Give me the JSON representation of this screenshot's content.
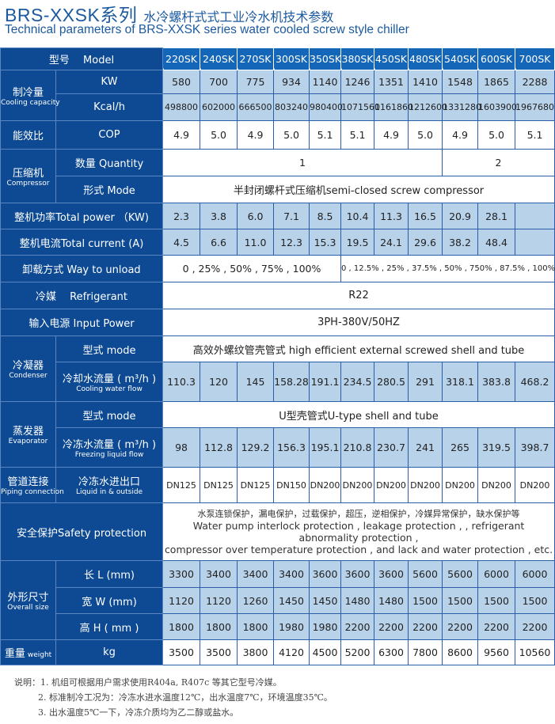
{
  "title": {
    "main": "BRS-XXSK系列",
    "cn": "水冷螺杆式式工业冷水机技术参数",
    "en": "Technical parameters of BRS-XXSK series water cooled screw style chiller"
  },
  "header": {
    "label": "型号　 Model",
    "models": [
      "220SK",
      "240SK",
      "270SK",
      "300SK",
      "350SK",
      "380SK",
      "450SK",
      "480SK",
      "540SK",
      "600SK",
      "700SK"
    ]
  },
  "cooling": {
    "label": "制冷量",
    "sub": "Cooling capacity",
    "kw_label": "KW",
    "kw": [
      "580",
      "700",
      "775",
      "934",
      "1140",
      "1246",
      "1351",
      "1410",
      "1548",
      "1865",
      "2288"
    ],
    "kcal_label": "Kcal/h",
    "kcal": [
      "498800",
      "602000",
      "666500",
      "803240",
      "980400",
      "1071560",
      "1161860",
      "1212600",
      "1331280",
      "1603900",
      "1967680"
    ]
  },
  "cop": {
    "label": "能效比",
    "unit": "COP",
    "values": [
      "4.9",
      "5.0",
      "4.9",
      "5.0",
      "5.1",
      "5.1",
      "4.9",
      "5.0",
      "4.9",
      "5.0",
      "5.1"
    ]
  },
  "compressor": {
    "label": "压缩机",
    "sub": "Compressor",
    "qty_label": "数量 Quantity",
    "qty": [
      "1",
      "2"
    ],
    "mode_label": "形式 Mode",
    "mode": "半封闭螺杆式压缩机semi-closed screw compressor"
  },
  "power": {
    "label": "整机功率Total power （KW)",
    "values": [
      "2.3",
      "3.8",
      "6.0",
      "7.1",
      "8.5",
      "10.4",
      "11.3",
      "16.5",
      "20.9",
      "28.1",
      ""
    ]
  },
  "current": {
    "label": "整机电流Total current (A)",
    "values": [
      "4.5",
      "6.6",
      "11.0",
      "12.3",
      "15.3",
      "19.5",
      "24.1",
      "29.6",
      "38.2",
      "48.4",
      ""
    ]
  },
  "unload": {
    "label": "卸载方式 Way to unload",
    "a": "0 , 25% , 50% , 75% , 100%",
    "b": "0 , 12.5% , 25% , 37.5% , 50% , 750% , 87.5% , 100%"
  },
  "refrigerant": {
    "label": "冷媒　 Refrigerant",
    "value": "R22"
  },
  "input_power": {
    "label": "输入电源 Input Power",
    "value": "3PH-380V/50HZ"
  },
  "condenser": {
    "label": "冷凝器",
    "sub": "Condenser",
    "mode_label": "型式 mode",
    "mode": "高效外螺纹管壳管式 high efficient external screwed shell and tube",
    "flow_label": "冷却水流量 ( m³/h )",
    "flow_sub": "Cooling water flow",
    "flow": [
      "110.3",
      "120",
      "145",
      "158.28",
      "191.1",
      "234.5",
      "280.5",
      "291",
      "318.1",
      "383.8",
      "468.2"
    ]
  },
  "evaporator": {
    "label": "蒸发器",
    "sub": "Evaporator",
    "mode_label": "型式 mode",
    "mode": "U型壳管式U-type shell and tube",
    "flow_label": "冷冻水流量 ( m³/h )",
    "flow_sub": "Freezing liquid flow",
    "flow": [
      "98",
      "112.8",
      "129.2",
      "156.3",
      "195.1",
      "210.8",
      "230.7",
      "241",
      "265",
      "319.5",
      "398.7"
    ]
  },
  "piping": {
    "label": "管道连接",
    "sub": "Piping connection",
    "item": "冷冻水进出口",
    "item_sub": "Liquid in & outside",
    "values": [
      "DN125",
      "DN125",
      "DN125",
      "DN150",
      "DN200",
      "DN200",
      "DN200",
      "DN200",
      "DN200",
      "DN200",
      "DN200"
    ]
  },
  "safety": {
    "label": "安全保护Safety protection",
    "cn": "水泵连锁保护，漏电保护，过载保护，超压，逆相保护，冷媒异常保护，缺水保护等",
    "en1": "Water pump interlock protection ,  leakage protection ,  , refrigerant abnormality protection ,",
    "en2": "compressor over temperature protection , and lack and water protection , etc."
  },
  "dimensions": {
    "label": "外形尺寸",
    "sub": "Overall size",
    "l_label": "长 L (mm)",
    "l": [
      "3300",
      "3400",
      "3400",
      "3400",
      "3600",
      "3600",
      "3600",
      "5600",
      "5600",
      "6000",
      "6000"
    ],
    "w_label": "宽 W (mm)",
    "w": [
      "1120",
      "1120",
      "1260",
      "1450",
      "1450",
      "1480",
      "1480",
      "1500",
      "1500",
      "1500",
      "1500"
    ],
    "h_label": "高 H ( mm )",
    "h": [
      "1800",
      "1800",
      "1800",
      "1980",
      "1980",
      "2200",
      "2200",
      "2200",
      "2200",
      "2200",
      "2200"
    ]
  },
  "weight": {
    "label": "重量",
    "sub": "weight",
    "unit": "kg",
    "values": [
      "3500",
      "3500",
      "3800",
      "4120",
      "4500",
      "5200",
      "6300",
      "7800",
      "8600",
      "9560",
      "10560"
    ]
  },
  "notes": {
    "prefix": "说明：",
    "n1": "1. 机组可根据用户需求使用R404a, R407c 等其它型号冷媒。",
    "n2": "2. 标准制冷工况为：冷冻水进水温度12℃，出水温度7℃，环境温度35℃。",
    "n3": "3. 出水温度5℃一下，冷冻介质均为乙二醇或盐水。"
  },
  "colors": {
    "label_bg": "#0d4a93",
    "header_bg": "#1466b8",
    "light_cell": "#b8d2ea",
    "title": "#1c5aa0"
  }
}
